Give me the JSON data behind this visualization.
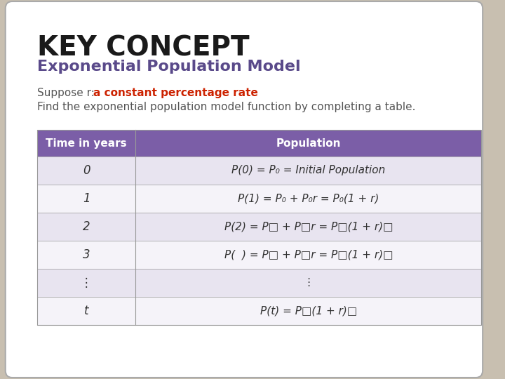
{
  "title": "KEY CONCEPT",
  "subtitle": "Exponential Population Model",
  "suppose_normal": "Suppose r: ",
  "suppose_red": "a constant percentage rate",
  "body_text": "Find the exponential population model function by completing a table.",
  "table_header": [
    "Time in years",
    "Population"
  ],
  "table_rows": [
    [
      "0",
      "P(0) = P₀ = Initial Population"
    ],
    [
      "1",
      "P(1) = P₀ + P₀r = P₀(1 + r)"
    ],
    [
      "2",
      "P(2) = P□ + P□r = P□(1 + r)□"
    ],
    [
      "3",
      "P(  ) = P□ + P□r = P□(1 + r)□"
    ],
    [
      "⋮",
      "⋮"
    ],
    [
      "t",
      "P(t) = P□(1 + r)□"
    ]
  ],
  "header_bg": "#7b5ea7",
  "header_fg": "#ffffff",
  "row_bg_odd": "#e8e4f0",
  "row_bg_even": "#f5f3f9",
  "bg_outer": "#c8bfb0",
  "bg_inner": "#ffffff",
  "title_color": "#1a1a1a",
  "subtitle_color": "#5a4a8a",
  "body_color": "#555555",
  "red_color": "#cc2200",
  "border_color": "#aaaaaa"
}
